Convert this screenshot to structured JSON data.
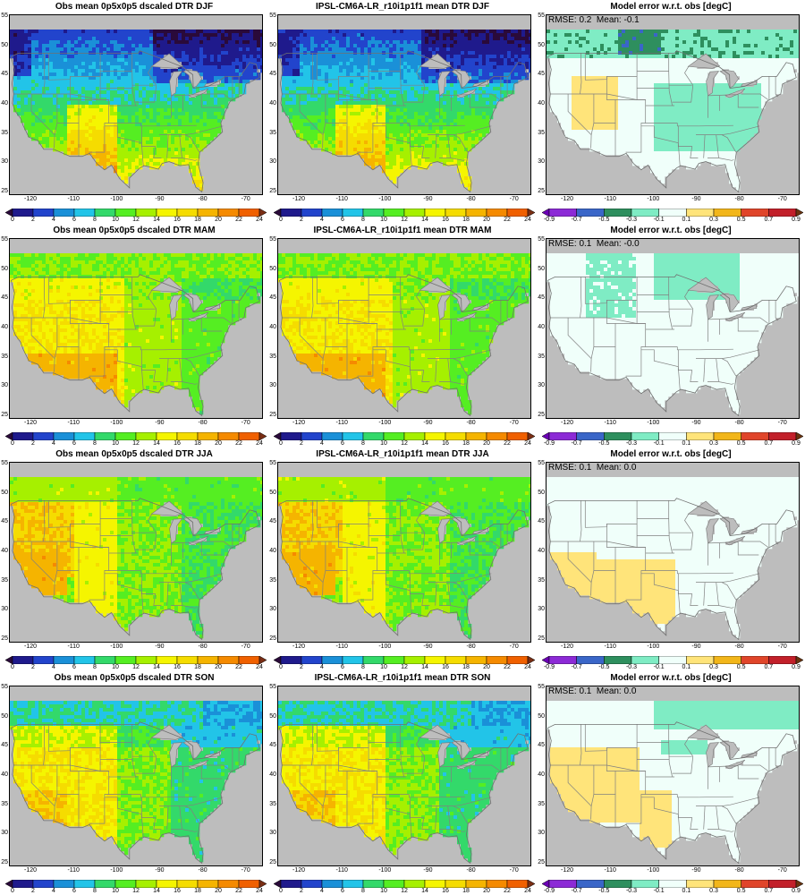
{
  "panels": [
    {
      "row": 0,
      "col": 0,
      "kind": "obs",
      "title": "Obs mean 0p5x0p5 dscaled DTR DJF",
      "season": "DJF"
    },
    {
      "row": 0,
      "col": 1,
      "kind": "model",
      "title": "IPSL-CM6A-LR_r10i1p1f1 mean DTR DJF",
      "season": "DJF"
    },
    {
      "row": 0,
      "col": 2,
      "kind": "err",
      "title": "Model error w.r.t. obs [degC]",
      "rmse_text": "RMSE: 0.2",
      "mean_text": "Mean: -0.1",
      "season": "DJF"
    },
    {
      "row": 1,
      "col": 0,
      "kind": "obs",
      "title": "Obs mean 0p5x0p5 dscaled DTR MAM",
      "season": "MAM"
    },
    {
      "row": 1,
      "col": 1,
      "kind": "model",
      "title": "IPSL-CM6A-LR_r10i1p1f1 mean DTR MAM",
      "season": "MAM"
    },
    {
      "row": 1,
      "col": 2,
      "kind": "err",
      "title": "Model error w.r.t. obs [degC]",
      "rmse_text": "RMSE: 0.1",
      "mean_text": "Mean: -0.0",
      "season": "MAM"
    },
    {
      "row": 2,
      "col": 0,
      "kind": "obs",
      "title": "Obs mean 0p5x0p5 dscaled DTR JJA",
      "season": "JJA"
    },
    {
      "row": 2,
      "col": 1,
      "kind": "model",
      "title": "IPSL-CM6A-LR_r10i1p1f1 mean DTR JJA",
      "season": "JJA"
    },
    {
      "row": 2,
      "col": 2,
      "kind": "err",
      "title": "Model error w.r.t. obs [degC]",
      "rmse_text": "RMSE: 0.1",
      "mean_text": "Mean: 0.0",
      "season": "JJA"
    },
    {
      "row": 3,
      "col": 0,
      "kind": "obs",
      "title": "Obs mean 0p5x0p5 dscaled DTR SON",
      "season": "SON"
    },
    {
      "row": 3,
      "col": 1,
      "kind": "model",
      "title": "IPSL-CM6A-LR_r10i1p1f1 mean DTR SON",
      "season": "SON"
    },
    {
      "row": 3,
      "col": 2,
      "kind": "err",
      "title": "Model error w.r.t. obs [degC]",
      "rmse_text": "RMSE: 0.1",
      "mean_text": "Mean: 0.0",
      "season": "SON"
    }
  ],
  "axes": {
    "lon_ticks": [
      "-120",
      "-110",
      "-100",
      "-90",
      "-80",
      "-70"
    ],
    "lat_ticks": [
      "55",
      "50",
      "45",
      "40",
      "35",
      "30",
      "25"
    ],
    "lon_range": [
      -125,
      -66
    ],
    "lat_range": [
      24.5,
      55.5
    ]
  },
  "colorbars": {
    "dtr": {
      "labels": [
        "0",
        "2",
        "4",
        "6",
        "8",
        "10",
        "12",
        "14",
        "16",
        "18",
        "20",
        "22",
        "24"
      ],
      "colors": [
        "#2a0a3a",
        "#1f1a8c",
        "#2244cc",
        "#1a90d8",
        "#22c4e8",
        "#33d96a",
        "#55ee22",
        "#a6f000",
        "#f5f500",
        "#f5dc00",
        "#f5b400",
        "#f58a00",
        "#f06000",
        "#7a2e14"
      ]
    },
    "err": {
      "labels": [
        "-0.9",
        "-0.7",
        "-0.5",
        "-0.3",
        "-0.1",
        "0.1",
        "0.3",
        "0.5",
        "0.7",
        "0.9"
      ],
      "colors": [
        "#6b00b5",
        "#8c2ad6",
        "#3a66c8",
        "#2e8f5e",
        "#7fecc4",
        "#f0fffa",
        "#ffe47a",
        "#f2b61a",
        "#e0452a",
        "#c2202a",
        "#6b3410"
      ]
    }
  },
  "chart_data": [
    {
      "type": "heatmap",
      "title": "Obs mean 0p5x0p5 dscaled DTR DJF",
      "region": "Contiguous United States",
      "units": "degC",
      "range": [
        0,
        24
      ],
      "summary": {
        "north_west": 10,
        "great_plains": 14,
        "southwest": 18,
        "southeast": 12,
        "great_lakes": 8,
        "pacific_nw": 3
      }
    },
    {
      "type": "heatmap",
      "title": "IPSL-CM6A-LR_r10i1p1f1 mean DTR DJF",
      "units": "degC",
      "range": [
        0,
        24
      ],
      "summary": {
        "north_west": 10,
        "great_plains": 14,
        "southwest": 18,
        "southeast": 12,
        "great_lakes": 8,
        "pacific_nw": 3
      }
    },
    {
      "type": "heatmap",
      "title": "Model error w.r.t. obs [degC]",
      "season": "DJF",
      "rmse": 0.2,
      "mean": -0.1,
      "range": [
        -0.9,
        0.9
      ]
    },
    {
      "type": "heatmap",
      "title": "Obs mean 0p5x0p5 dscaled DTR MAM",
      "units": "degC",
      "range": [
        0,
        24
      ],
      "summary": {
        "north": 14,
        "great_plains": 16,
        "southwest": 21,
        "southeast": 15
      }
    },
    {
      "type": "heatmap",
      "title": "IPSL-CM6A-LR_r10i1p1f1 mean DTR MAM",
      "units": "degC",
      "range": [
        0,
        24
      ],
      "summary": {
        "north": 14,
        "great_plains": 16,
        "southwest": 21,
        "southeast": 15
      }
    },
    {
      "type": "heatmap",
      "title": "Model error w.r.t. obs [degC]",
      "season": "MAM",
      "rmse": 0.1,
      "mean": -0.0,
      "range": [
        -0.9,
        0.9
      ]
    },
    {
      "type": "heatmap",
      "title": "Obs mean 0p5x0p5 dscaled DTR JJA",
      "units": "degC",
      "range": [
        0,
        24
      ],
      "summary": {
        "great_basin": 22,
        "plains": 15,
        "east": 12,
        "southwest": 18
      }
    },
    {
      "type": "heatmap",
      "title": "IPSL-CM6A-LR_r10i1p1f1 mean DTR JJA",
      "units": "degC",
      "range": [
        0,
        24
      ],
      "summary": {
        "great_basin": 22,
        "plains": 15,
        "east": 12,
        "southwest": 18
      }
    },
    {
      "type": "heatmap",
      "title": "Model error w.r.t. obs [degC]",
      "season": "JJA",
      "rmse": 0.1,
      "mean": 0.0,
      "range": [
        -0.9,
        0.9
      ]
    },
    {
      "type": "heatmap",
      "title": "Obs mean 0p5x0p5 dscaled DTR SON",
      "units": "degC",
      "range": [
        0,
        24
      ],
      "summary": {
        "west": 18,
        "plains": 16,
        "east": 12,
        "north": 10
      }
    },
    {
      "type": "heatmap",
      "title": "IPSL-CM6A-LR_r10i1p1f1 mean DTR SON",
      "units": "degC",
      "range": [
        0,
        24
      ],
      "summary": {
        "west": 18,
        "plains": 16,
        "east": 12,
        "north": 10
      }
    },
    {
      "type": "heatmap",
      "title": "Model error w.r.t. obs [degC]",
      "season": "SON",
      "rmse": 0.1,
      "mean": 0.0,
      "range": [
        -0.9,
        0.9
      ]
    }
  ]
}
